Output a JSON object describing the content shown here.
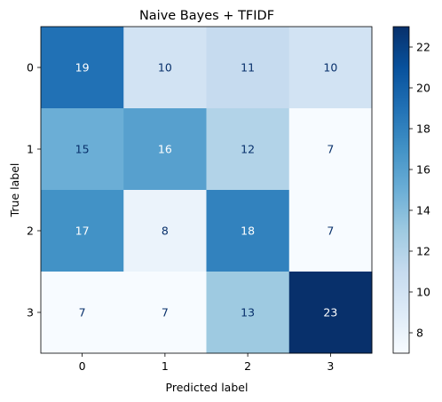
{
  "chart_data": {
    "type": "heatmap",
    "title": "Naive Bayes + TFIDF",
    "xlabel": "Predicted label",
    "ylabel": "True label",
    "x_categories": [
      "0",
      "1",
      "2",
      "3"
    ],
    "y_categories": [
      "0",
      "1",
      "2",
      "3"
    ],
    "matrix": [
      [
        19,
        10,
        11,
        10
      ],
      [
        15,
        16,
        12,
        7
      ],
      [
        17,
        8,
        18,
        7
      ],
      [
        7,
        7,
        13,
        23
      ]
    ],
    "colormap": "Blues",
    "value_range": [
      7,
      23
    ],
    "colorbar_ticks": [
      8,
      10,
      12,
      14,
      16,
      18,
      20,
      22
    ],
    "grid": false
  }
}
